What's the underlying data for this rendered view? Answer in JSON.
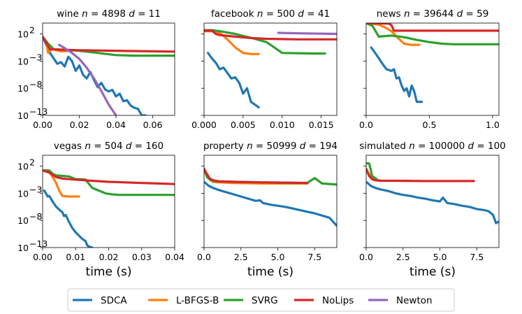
{
  "chart_data": {
    "type": "line",
    "yscale": "log",
    "ylim_exp": [
      -13,
      4
    ],
    "yticks": [
      {
        "exp": 2,
        "label": "10"
      },
      {
        "exp": -3,
        "label": "10"
      },
      {
        "exp": -8,
        "label": "10"
      },
      {
        "exp": -13,
        "label": "10"
      }
    ],
    "ytick_exps": [
      "2",
      "−3",
      "−8",
      "−13"
    ],
    "colors": {
      "SDCA": "#1f77b4",
      "L-BFGS-B": "#ff7f0e",
      "SVRG": "#2ca02c",
      "NoLips": "#d62728",
      "Newton": "#9467bd"
    },
    "legend": [
      "SDCA",
      "L-BFGS-B",
      "SVRG",
      "NoLips",
      "Newton"
    ],
    "panels": [
      {
        "title": "wine n = 4898 d = 11",
        "title_parts": [
          "wine ",
          "n",
          " = 4898 ",
          "d",
          " = 11"
        ],
        "xlabel": "",
        "xlim": [
          0,
          0.072
        ],
        "xticks": [
          0,
          0.02,
          0.04,
          0.06
        ],
        "xticklabels": [
          "0.00",
          "0.02",
          "0.04",
          "0.06"
        ],
        "series": [
          {
            "name": "SDCA",
            "x": [
              0,
              0.002,
              0.004,
              0.006,
              0.008,
              0.01,
              0.012,
              0.014,
              0.016,
              0.018,
              0.02,
              0.022,
              0.024,
              0.026,
              0.028,
              0.03,
              0.032,
              0.034,
              0.036,
              0.038,
              0.04,
              0.042,
              0.044,
              0.046,
              0.048,
              0.05,
              0.052,
              0.054,
              0.056
            ],
            "y": [
              1.5,
              0,
              -1.5,
              -2.5,
              -3.5,
              -3.2,
              -4,
              -2.2,
              -3,
              -4.8,
              -3.8,
              -5.5,
              -6.2,
              -5,
              -6.5,
              -7.8,
              -7,
              -8.2,
              -8.6,
              -8.3,
              -9.5,
              -9,
              -10.4,
              -10.2,
              -11.2,
              -11.6,
              -11.8,
              -13,
              -13
            ]
          },
          {
            "name": "L-BFGS-B",
            "x": [
              0,
              0.002,
              0.003,
              0.005,
              0.01,
              0.015
            ],
            "y": [
              1.5,
              0.5,
              -1.5,
              -0.8,
              -1.2,
              -1.1
            ]
          },
          {
            "name": "SVRG",
            "x": [
              0,
              0.003,
              0.006,
              0.01,
              0.02,
              0.03,
              0.04,
              0.05,
              0.06,
              0.072
            ],
            "y": [
              1.5,
              0.2,
              -0.8,
              -0.9,
              -1.1,
              -1.5,
              -1.9,
              -2.0,
              -2.0,
              -2.0
            ]
          },
          {
            "name": "NoLips",
            "x": [
              0,
              0.004,
              0.01,
              0.02,
              0.03,
              0.04,
              0.05,
              0.06,
              0.072
            ],
            "y": [
              1.5,
              -0.8,
              -0.9,
              -1.0,
              -1.05,
              -1.1,
              -1.15,
              -1.2,
              -1.25
            ]
          },
          {
            "name": "Newton",
            "x": [
              0.009,
              0.012,
              0.016,
              0.02,
              0.024,
              0.028,
              0.032,
              0.036,
              0.04
            ],
            "y": [
              0,
              -0.6,
              -1.5,
              -2.6,
              -4.2,
              -6.2,
              -8.5,
              -11,
              -13
            ]
          }
        ]
      },
      {
        "title": "facebook n = 500 d = 41",
        "title_parts": [
          "facebook ",
          "n",
          " = 500 ",
          "d",
          " = 41"
        ],
        "xlabel": "",
        "xlim": [
          0,
          0.017
        ],
        "xticks": [
          0,
          0.005,
          0.01,
          0.015
        ],
        "xticklabels": [
          "0.000",
          "0.005",
          "0.010",
          "0.015"
        ],
        "series": [
          {
            "name": "SDCA",
            "x": [
              0.0005,
              0.001,
              0.0015,
              0.002,
              0.0025,
              0.003,
              0.0035,
              0.004,
              0.0045,
              0.005,
              0.0055,
              0.006,
              0.0065,
              0.007
            ],
            "y": [
              -1.5,
              -2.5,
              -3.3,
              -4.5,
              -4.2,
              -5.2,
              -6.2,
              -6,
              -7,
              -9,
              -8,
              -10.5,
              -11,
              -11.5
            ]
          },
          {
            "name": "L-BFGS-B",
            "x": [
              0,
              0.001,
              0.002,
              0.003,
              0.004,
              0.005,
              0.006,
              0.007
            ],
            "y": [
              2.5,
              2.5,
              2.2,
              1.0,
              -0.5,
              -1.5,
              -1.7,
              -1.7
            ]
          },
          {
            "name": "SVRG",
            "x": [
              0,
              0.001,
              0.002,
              0.004,
              0.006,
              0.008,
              0.009,
              0.01,
              0.012,
              0.014,
              0.0155
            ],
            "y": [
              2.7,
              2.7,
              2.5,
              2.0,
              1.3,
              0.5,
              -0.5,
              -1.5,
              -1.55,
              -1.6,
              -1.6
            ]
          },
          {
            "name": "NoLips",
            "x": [
              0,
              0.001,
              0.0015,
              0.002,
              0.004,
              0.006,
              0.008,
              0.01,
              0.012,
              0.014,
              0.017
            ],
            "y": [
              2.6,
              2.6,
              2.0,
              1.8,
              1.5,
              1.25,
              1.1,
              1.05,
              1.0,
              1.0,
              1.0
            ]
          },
          {
            "name": "Newton",
            "x": [
              0.0095,
              0.011,
              0.013,
              0.015,
              0.017
            ],
            "y": [
              2.2,
              2.15,
              2.1,
              2.05,
              2.0
            ]
          }
        ]
      },
      {
        "title": "news n = 39644 d = 59",
        "title_parts": [
          "news ",
          "n",
          " = 39644 ",
          "d",
          " = 59"
        ],
        "xlabel": "",
        "xlim": [
          0,
          1.05
        ],
        "xticks": [
          0,
          0.5,
          1.0
        ],
        "xticklabels": [
          "0.0",
          "0.5",
          "1.0"
        ],
        "series": [
          {
            "name": "SDCA",
            "x": [
              0.04,
              0.08,
              0.12,
              0.16,
              0.2,
              0.22,
              0.24,
              0.26,
              0.28,
              0.3,
              0.32,
              0.34,
              0.36,
              0.38,
              0.4,
              0.42,
              0.44
            ],
            "y": [
              -0.5,
              -1.8,
              -3.2,
              -4.5,
              -4.8,
              -4.5,
              -6.2,
              -6.0,
              -7.5,
              -8.5,
              -8.0,
              -9.5,
              -7.5,
              -8.6,
              -10.5,
              -10.5,
              -10.5
            ]
          },
          {
            "name": "L-BFGS-B",
            "x": [
              0,
              0.05,
              0.1,
              0.15,
              0.2,
              0.25,
              0.3,
              0.35,
              0.42
            ],
            "y": [
              4,
              3.9,
              3.7,
              3.2,
              2.5,
              1.3,
              0.2,
              0.0,
              0.0
            ]
          },
          {
            "name": "SVRG",
            "x": [
              0,
              0.05,
              0.1,
              0.15,
              0.2,
              0.3,
              0.4,
              0.5,
              0.6,
              0.7,
              0.8,
              0.9,
              1.05
            ],
            "y": [
              4,
              3.5,
              1.5,
              1.6,
              1.7,
              1.4,
              0.9,
              0.5,
              0.2,
              0.1,
              0.1,
              0.1,
              0.1
            ]
          },
          {
            "name": "NoLips",
            "x": [
              0,
              0.1,
              0.18,
              0.2,
              0.22,
              0.25,
              0.3,
              0.4,
              0.5,
              0.6,
              0.8,
              1.05
            ],
            "y": [
              4,
              3.95,
              3.9,
              3.6,
              2.6,
              2.6,
              2.6,
              2.6,
              2.6,
              2.6,
              2.6,
              2.6
            ]
          }
        ]
      },
      {
        "title": "vegas n = 504 d = 160",
        "title_parts": [
          "vegas ",
          "n",
          " = 504 ",
          "d",
          " = 160"
        ],
        "xlabel": "time (s)",
        "xlim": [
          0,
          0.04
        ],
        "xticks": [
          0,
          0.01,
          0.02,
          0.03,
          0.04
        ],
        "xticklabels": [
          "0.00",
          "0.01",
          "0.02",
          "0.03",
          "0.04"
        ],
        "series": [
          {
            "name": "SDCA",
            "x": [
              0.0005,
              0.001,
              0.0015,
              0.002,
              0.003,
              0.004,
              0.005,
              0.006,
              0.0065,
              0.007,
              0.008,
              0.009,
              0.01,
              0.011,
              0.012,
              0.013,
              0.0135,
              0.014,
              0.015
            ],
            "y": [
              -2.5,
              -3,
              -3.6,
              -3.5,
              -4.5,
              -5.4,
              -6,
              -6.5,
              -7.2,
              -7,
              -8.3,
              -9.4,
              -10.2,
              -10.8,
              -11.4,
              -11.8,
              -12.6,
              -12.8,
              -13
            ]
          },
          {
            "name": "L-BFGS-B",
            "x": [
              0,
              0.001,
              0.002,
              0.003,
              0.004,
              0.005,
              0.006,
              0.008,
              0.011
            ],
            "y": [
              1.2,
              1.2,
              1.0,
              0.0,
              -1.0,
              -2.5,
              -3.5,
              -3.6,
              -3.6
            ]
          },
          {
            "name": "SVRG",
            "x": [
              0,
              0.002,
              0.003,
              0.004,
              0.006,
              0.008,
              0.01,
              0.011,
              0.013,
              0.015,
              0.017,
              0.019,
              0.021,
              0.023,
              0.03,
              0.04
            ],
            "y": [
              1.2,
              1.2,
              0.6,
              0.3,
              0.2,
              0.1,
              -0.4,
              -0.4,
              -0.5,
              -2.0,
              -2.5,
              -3.0,
              -3.2,
              -3.3,
              -3.3,
              -3.3
            ]
          },
          {
            "name": "NoLips",
            "x": [
              0,
              0.002,
              0.004,
              0.006,
              0.008,
              0.01,
              0.015,
              0.02,
              0.025,
              0.03,
              0.035,
              0.04
            ],
            "y": [
              1.2,
              0.8,
              0.0,
              -0.3,
              -0.4,
              -0.5,
              -0.7,
              -0.9,
              -1.0,
              -1.1,
              -1.2,
              -1.3
            ]
          }
        ]
      },
      {
        "title": "property n = 50999 d = 194",
        "title_parts": [
          "property ",
          "n",
          " = 50999 ",
          "d",
          " = 194"
        ],
        "xlabel": "time (s)",
        "xlim": [
          0,
          9
        ],
        "xticks": [
          0,
          2.5,
          5,
          7.5
        ],
        "xticklabels": [
          "0.0",
          "2.5",
          "5.0",
          "7.5"
        ],
        "series": [
          {
            "name": "SDCA",
            "x": [
              0.05,
              0.3,
              0.6,
              1,
              1.5,
              2,
              2.5,
              3,
              3.5,
              3.8,
              4,
              4.5,
              5,
              5.5,
              6,
              6.5,
              7,
              7.5,
              8,
              8.5,
              9
            ],
            "y": [
              -1,
              -1.6,
              -2,
              -2.4,
              -2.8,
              -3.2,
              -3.6,
              -4,
              -4.4,
              -4.3,
              -4.8,
              -5.1,
              -5.3,
              -5.5,
              -5.8,
              -6.1,
              -6.4,
              -6.7,
              -7.1,
              -7.5,
              -9
            ]
          },
          {
            "name": "L-BFGS-B",
            "x": [
              0,
              0.2,
              0.4,
              0.6,
              1,
              2,
              4,
              6,
              7
            ],
            "y": [
              1.5,
              0.5,
              -0.5,
              -0.9,
              -1.0,
              -1.1,
              -1.2,
              -1.2,
              -1.2
            ]
          },
          {
            "name": "SVRG",
            "x": [
              0,
              0.2,
              0.4,
              0.6,
              1,
              2,
              4,
              6,
              7,
              7.5,
              8,
              9
            ],
            "y": [
              1.5,
              0,
              -0.5,
              -0.7,
              -0.8,
              -0.9,
              -1.0,
              -1.1,
              -1.1,
              -0.2,
              -1.2,
              -1.4
            ]
          },
          {
            "name": "NoLips",
            "x": [
              0,
              0.2,
              0.4,
              0.6,
              1,
              2,
              4,
              6,
              7
            ],
            "y": [
              1.5,
              0.5,
              -0.3,
              -0.6,
              -0.8,
              -0.9,
              -1.0,
              -1.05,
              -1.1
            ]
          }
        ]
      },
      {
        "title": "simulated n = 100000 d = 100",
        "title_parts": [
          "simulated ",
          "n",
          " = 100000 ",
          "d",
          " = 100"
        ],
        "xlabel": "time (s)",
        "xlim": [
          0,
          9
        ],
        "xticks": [
          0,
          2.5,
          5,
          7.5
        ],
        "xticklabels": [
          "0.0",
          "2.5",
          "5.0",
          "7.5"
        ],
        "series": [
          {
            "name": "SDCA",
            "x": [
              0.05,
              0.3,
              0.6,
              1,
              1.5,
              2,
              2.5,
              3,
              3.5,
              4,
              4.5,
              5,
              5.2,
              5.5,
              6,
              6.5,
              7,
              7.5,
              8,
              8.3,
              8.6,
              8.8,
              9
            ],
            "y": [
              -1,
              -1.6,
              -2,
              -2.3,
              -2.6,
              -3,
              -3.3,
              -3.5,
              -3.8,
              -4,
              -4.3,
              -4.5,
              -3.8,
              -4.8,
              -5,
              -5.3,
              -5.5,
              -5.9,
              -6.1,
              -6.3,
              -7,
              -8.5,
              -8.2
            ]
          },
          {
            "name": "L-BFGS-B",
            "x": [
              0,
              0.2,
              0.4,
              0.6,
              0.8,
              1.0
            ],
            "y": [
              1.5,
              0.5,
              -0.3,
              -0.6,
              -0.65,
              -0.7
            ]
          },
          {
            "name": "SVRG",
            "x": [
              0,
              0.2,
              0.3,
              0.4,
              0.6,
              0.8,
              1.0
            ],
            "y": [
              2.5,
              2.5,
              1.5,
              0.2,
              -0.2,
              -0.6,
              -0.7
            ]
          },
          {
            "name": "NoLips",
            "x": [
              0,
              0.2,
              0.4,
              0.6,
              1,
              2,
              4,
              6,
              7.3
            ],
            "y": [
              1.5,
              0.2,
              -0.4,
              -0.6,
              -0.7,
              -0.7,
              -0.75,
              -0.75,
              -0.75
            ]
          }
        ]
      }
    ]
  }
}
